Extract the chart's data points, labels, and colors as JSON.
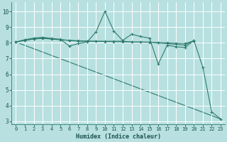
{
  "xlabel": "Humidex (Indice chaleur)",
  "bg_color": "#b8e0e0",
  "grid_color": "#ffffff",
  "line_color": "#2e7b6e",
  "xlim": [
    -0.5,
    23.5
  ],
  "ylim": [
    2.8,
    10.6
  ],
  "yticks": [
    3,
    4,
    5,
    6,
    7,
    8,
    9,
    10
  ],
  "xticks": [
    0,
    1,
    2,
    3,
    4,
    5,
    6,
    7,
    8,
    9,
    10,
    11,
    12,
    13,
    14,
    15,
    16,
    17,
    18,
    19,
    20,
    21,
    22,
    23
  ],
  "series": [
    {
      "x": [
        0,
        1,
        2,
        3,
        4,
        5,
        6,
        7,
        8,
        9,
        10,
        11,
        12,
        13,
        14,
        15,
        16,
        17,
        18,
        19,
        20,
        21,
        22,
        23
      ],
      "y": [
        8.05,
        8.2,
        8.3,
        8.35,
        8.28,
        8.22,
        7.8,
        7.95,
        8.05,
        8.7,
        10.0,
        8.75,
        8.15,
        8.55,
        8.4,
        8.3,
        6.65,
        7.85,
        7.75,
        7.7,
        8.15,
        6.45,
        3.6,
        3.15
      ],
      "marker": "+"
    },
    {
      "x": [
        0,
        1,
        2,
        3,
        4,
        5,
        6,
        7,
        8,
        9,
        10,
        11,
        12,
        13,
        14,
        15,
        16,
        17,
        18,
        19,
        20
      ],
      "y": [
        8.05,
        8.15,
        8.25,
        8.3,
        8.25,
        8.2,
        8.15,
        8.1,
        8.1,
        8.1,
        8.1,
        8.1,
        8.1,
        8.05,
        8.05,
        8.05,
        8.0,
        7.95,
        7.9,
        7.85,
        8.15
      ],
      "marker": "+"
    },
    {
      "x": [
        0,
        1,
        2,
        3,
        4,
        5,
        6,
        7,
        8,
        9,
        10,
        11,
        12,
        13,
        14,
        15,
        16,
        17,
        18,
        19,
        20
      ],
      "y": [
        8.05,
        8.16,
        8.24,
        8.28,
        8.24,
        8.19,
        8.16,
        8.13,
        8.11,
        8.09,
        8.08,
        8.07,
        8.06,
        8.05,
        8.04,
        8.03,
        8.01,
        7.99,
        7.97,
        7.95,
        8.12
      ],
      "marker": "D"
    },
    {
      "x": [
        0,
        23
      ],
      "y": [
        8.05,
        3.15
      ]
    }
  ]
}
